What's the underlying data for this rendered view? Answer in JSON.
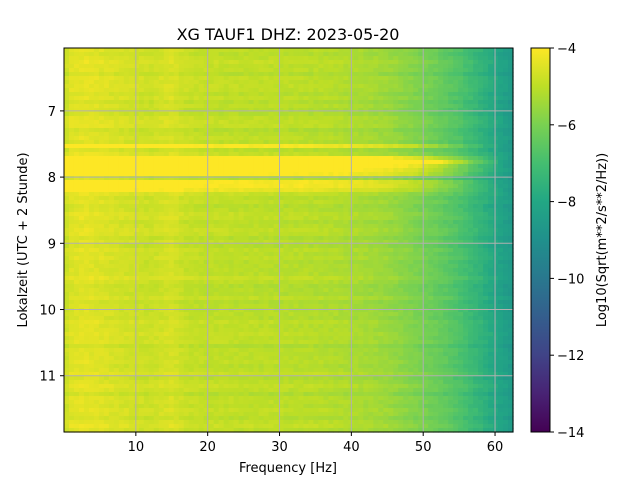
{
  "chart_data": {
    "type": "heatmap",
    "title": "XG TAUF1  DHZ: 2023-05-20",
    "xlabel": "Frequency [Hz]",
    "ylabel": "Lokalzeit (UTC + 2 Stunde)",
    "colorbar_label": "Log10(Sqrt(m**2/s**2/Hz))",
    "xlim": [
      0,
      62.5
    ],
    "ylim": [
      11.85,
      6.05
    ],
    "y_inverted": true,
    "clim": [
      -14,
      -4
    ],
    "colormap": "viridis",
    "grid": true,
    "xticks": [
      {
        "value": 10,
        "label": "10"
      },
      {
        "value": 20,
        "label": "20"
      },
      {
        "value": 30,
        "label": "30"
      },
      {
        "value": 40,
        "label": "40"
      },
      {
        "value": 50,
        "label": "50"
      },
      {
        "value": 60,
        "label": "60"
      }
    ],
    "yticks": [
      {
        "value": 7,
        "label": "7"
      },
      {
        "value": 8,
        "label": "8"
      },
      {
        "value": 9,
        "label": "9"
      },
      {
        "value": 10,
        "label": "10"
      },
      {
        "value": 11,
        "label": "11"
      }
    ],
    "cbar_ticks": [
      {
        "value": -4,
        "label": "−4"
      },
      {
        "value": -6,
        "label": "−6"
      },
      {
        "value": -8,
        "label": "−8"
      },
      {
        "value": -10,
        "label": "−10"
      },
      {
        "value": -12,
        "label": "−12"
      },
      {
        "value": -14,
        "label": "−14"
      }
    ],
    "frequency_profile": [
      {
        "freq": 0,
        "value": -4.9
      },
      {
        "freq": 1,
        "value": -4.5
      },
      {
        "freq": 3,
        "value": -4.4
      },
      {
        "freq": 8,
        "value": -4.65
      },
      {
        "freq": 12,
        "value": -4.8
      },
      {
        "freq": 15,
        "value": -4.6
      },
      {
        "freq": 17,
        "value": -4.85
      },
      {
        "freq": 20,
        "value": -4.95
      },
      {
        "freq": 25,
        "value": -5.0
      },
      {
        "freq": 30,
        "value": -5.05
      },
      {
        "freq": 35,
        "value": -5.1
      },
      {
        "freq": 40,
        "value": -5.25
      },
      {
        "freq": 45,
        "value": -5.5
      },
      {
        "freq": 48,
        "value": -5.8
      },
      {
        "freq": 52,
        "value": -6.3
      },
      {
        "freq": 55,
        "value": -6.8
      },
      {
        "freq": 58,
        "value": -7.5
      },
      {
        "freq": 60,
        "value": -8.0
      },
      {
        "freq": 62.5,
        "value": -8.6
      }
    ],
    "time_events": [
      {
        "time": 7.55,
        "width": 0.04,
        "delta": 1.0
      },
      {
        "time": 7.75,
        "width": 0.05,
        "delta": 1.3
      },
      {
        "time": 7.83,
        "width": 0.06,
        "delta": 1.6
      },
      {
        "time": 7.92,
        "width": 0.05,
        "delta": 1.2
      },
      {
        "time": 8.1,
        "width": 0.06,
        "delta": 1.0
      },
      {
        "time": 8.2,
        "width": 0.03,
        "delta": 0.7
      }
    ]
  }
}
